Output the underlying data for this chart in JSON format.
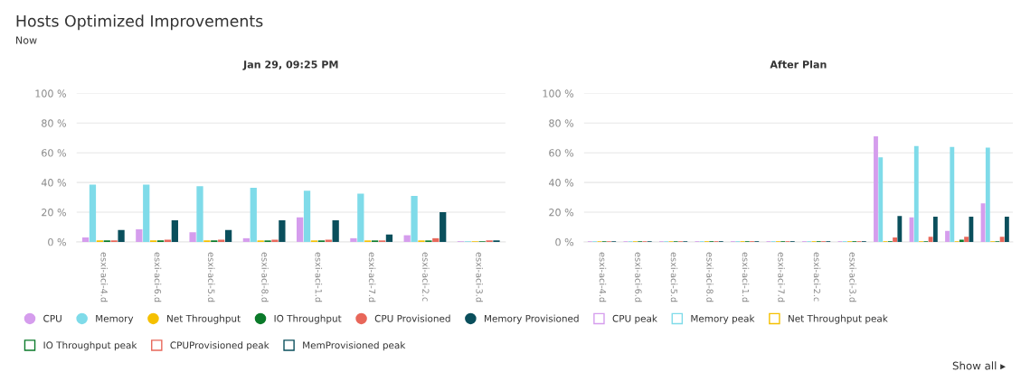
{
  "chart_data": [
    {
      "type": "bar",
      "title": "Hosts Optimized Improvements",
      "subtitle": "Now",
      "annotations": [
        "Jan 29, 09:25 PM"
      ],
      "categories": [
        "esxi-aci-4.d",
        "esxi-aci-6.d",
        "esxi-aci-5.d",
        "esxi-aci-8.d",
        "esxi-aci-1.d",
        "esxi-aci-7.d",
        "esxi-aci-2.c",
        "esxi-aci-3.d"
      ],
      "ylim": [
        0,
        100
      ],
      "yticks": [
        {
          "value": 0,
          "label": "0 %"
        },
        {
          "value": 20,
          "label": "20 %"
        },
        {
          "value": 40,
          "label": "40 %"
        },
        {
          "value": 60,
          "label": "60 %"
        },
        {
          "value": 80,
          "label": "80 %"
        },
        {
          "value": 100,
          "label": "100 %"
        }
      ],
      "grid": "y",
      "legend": "bottom",
      "series": [
        {
          "name": "CPU",
          "color": "#d59ded",
          "marker": "circle",
          "values": [
            3,
            8.5,
            6.5,
            2.5,
            16.5,
            2.5,
            4.5,
            0.5
          ]
        },
        {
          "name": "Memory",
          "color": "#7fdbe9",
          "marker": "circle",
          "values": [
            38.5,
            38.5,
            37.5,
            36.5,
            34.5,
            32.5,
            31,
            0.5
          ]
        },
        {
          "name": "Net Throughput",
          "color": "#f5c000",
          "marker": "circle",
          "values": [
            1,
            1,
            1,
            1,
            1,
            1,
            1,
            0.5
          ]
        },
        {
          "name": "IO Throughput",
          "color": "#0b7a2a",
          "marker": "circle",
          "values": [
            1,
            1,
            1,
            1,
            1,
            1,
            1,
            0.5
          ]
        },
        {
          "name": "CPU Provisioned",
          "color": "#e8675a",
          "marker": "circle",
          "values": [
            1,
            1.5,
            1.5,
            1.5,
            1.5,
            1,
            2.5,
            1
          ]
        },
        {
          "name": "Memory Provisioned",
          "color": "#0a4f5c",
          "marker": "circle",
          "values": [
            8,
            14.5,
            8,
            14.5,
            14.5,
            5,
            20,
            1
          ]
        },
        {
          "name": "CPU peak",
          "color": "#d59ded",
          "marker": "square",
          "values": [
            null,
            null,
            null,
            null,
            null,
            null,
            null,
            null
          ]
        },
        {
          "name": "Memory peak",
          "color": "#7fdbe9",
          "marker": "square",
          "values": [
            null,
            null,
            null,
            null,
            null,
            null,
            null,
            null
          ]
        },
        {
          "name": "Net Throughput peak",
          "color": "#f5c000",
          "marker": "square",
          "values": [
            null,
            null,
            null,
            null,
            null,
            null,
            null,
            null
          ]
        },
        {
          "name": "IO Throughput peak",
          "color": "#0b7a2a",
          "marker": "square",
          "values": [
            null,
            null,
            null,
            null,
            null,
            null,
            null,
            null
          ]
        },
        {
          "name": "CPUProvisioned peak",
          "color": "#e8675a",
          "marker": "square",
          "values": [
            null,
            null,
            null,
            null,
            null,
            null,
            null,
            null
          ]
        },
        {
          "name": "MemProvisioned peak",
          "color": "#0a4f5c",
          "marker": "square",
          "values": [
            null,
            null,
            null,
            null,
            null,
            null,
            null,
            null
          ]
        }
      ]
    },
    {
      "type": "bar",
      "annotations": [
        "After Plan",
        "Show all ▸"
      ],
      "categories": [
        "esxi-aci-4.d",
        "esxi-aci-6.d",
        "esxi-aci-5.d",
        "esxi-aci-8.d",
        "esxi-aci-1.d",
        "esxi-aci-7.d",
        "esxi-aci-2.c",
        "esxi-aci-3.d",
        null,
        null,
        null,
        null
      ],
      "ylim": [
        0,
        100
      ],
      "yticks": [
        {
          "value": 0,
          "label": "0 %"
        },
        {
          "value": 20,
          "label": "20 %"
        },
        {
          "value": 40,
          "label": "40 %"
        },
        {
          "value": 60,
          "label": "60 %"
        },
        {
          "value": 80,
          "label": "80 %"
        },
        {
          "value": 100,
          "label": "100 %"
        }
      ],
      "grid": "y",
      "series": [
        {
          "color": "#d59ded",
          "values": [
            0.5,
            0.5,
            0.5,
            0.5,
            0.5,
            0.5,
            0.5,
            0.5,
            71,
            16.5,
            7.5,
            26
          ]
        },
        {
          "color": "#7fdbe9",
          "values": [
            0.5,
            0.5,
            0.5,
            0.5,
            0.5,
            0.5,
            0.5,
            0.5,
            57,
            64.5,
            64,
            63.5
          ]
        },
        {
          "color": "#f5c000",
          "values": [
            0.5,
            0.5,
            0.5,
            0.5,
            0.5,
            0.5,
            0.5,
            0.5,
            0.5,
            0.5,
            0.5,
            0.5
          ]
        },
        {
          "color": "#0b7a2a",
          "values": [
            0.5,
            0.5,
            0.5,
            0.5,
            0.5,
            0.5,
            0.5,
            0.5,
            0.5,
            0.5,
            1.5,
            0.5
          ]
        },
        {
          "color": "#e8675a",
          "values": [
            0.5,
            0.5,
            0.5,
            0.5,
            0.5,
            0.5,
            0.5,
            0.5,
            3,
            3.5,
            3.5,
            3.5
          ]
        },
        {
          "color": "#0a4f5c",
          "values": [
            0.5,
            0.5,
            0.5,
            0.5,
            0.5,
            0.5,
            0.5,
            0.5,
            17.5,
            17,
            17,
            17
          ]
        }
      ]
    }
  ]
}
